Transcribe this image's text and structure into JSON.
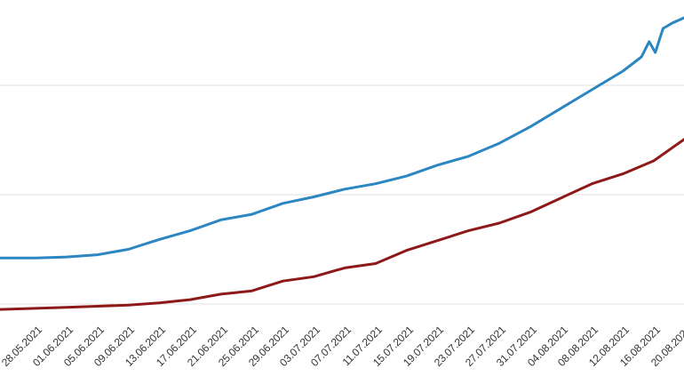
{
  "chart": {
    "background_color": "#ffffff",
    "gridline_color": "#e2e2e2",
    "tick_label_color": "#333333"
  },
  "chart_data": {
    "type": "line",
    "title": "",
    "xlabel": "",
    "ylabel": "",
    "legend": "none",
    "grid": true,
    "y_axis_tick_labels_visible": false,
    "y_gridline_values": [
      100,
      200,
      300
    ],
    "ylim": [
      80,
      375
    ],
    "x_tick_labels": [
      "28.05.2021",
      "01.06.2021",
      "05.06.2021",
      "09.06.2021",
      "13.06.2021",
      "17.06.2021",
      "21.06.2021",
      "25.06.2021",
      "29.06.2021",
      "03.07.2021",
      "07.07.2021",
      "11.07.2021",
      "15.07.2021",
      "19.07.2021",
      "23.07.2021",
      "27.07.2021",
      "31.07.2021",
      "04.08.2021",
      "08.08.2021",
      "12.08.2021",
      "16.08.2021",
      "20.08.2021"
    ],
    "series": [
      {
        "name": "upper-blue-line",
        "color": "#2c86c2",
        "stroke_width": 3,
        "points": [
          [
            -1.15,
            142
          ],
          [
            0,
            142
          ],
          [
            1,
            143
          ],
          [
            2,
            145
          ],
          [
            3,
            150
          ],
          [
            4,
            159
          ],
          [
            5,
            167
          ],
          [
            6,
            177
          ],
          [
            7,
            182
          ],
          [
            8,
            192
          ],
          [
            9,
            198
          ],
          [
            10,
            205
          ],
          [
            11,
            210
          ],
          [
            12,
            217
          ],
          [
            13,
            227
          ],
          [
            14,
            235
          ],
          [
            15,
            247
          ],
          [
            16,
            262
          ],
          [
            17,
            279
          ],
          [
            18,
            296
          ],
          [
            19,
            313
          ],
          [
            19.6,
            326
          ],
          [
            19.85,
            340
          ],
          [
            20.05,
            330
          ],
          [
            20.3,
            352
          ],
          [
            20.6,
            357
          ],
          [
            21,
            362
          ]
        ]
      },
      {
        "name": "lower-dark-red-line",
        "color": "#8e1919",
        "stroke_width": 3,
        "points": [
          [
            -1.15,
            95
          ],
          [
            0,
            96
          ],
          [
            1,
            97
          ],
          [
            2,
            98
          ],
          [
            3,
            99
          ],
          [
            4,
            101
          ],
          [
            5,
            104
          ],
          [
            6,
            109
          ],
          [
            7,
            112
          ],
          [
            8,
            121
          ],
          [
            9,
            125
          ],
          [
            10,
            133
          ],
          [
            11,
            137
          ],
          [
            12,
            149
          ],
          [
            13,
            158
          ],
          [
            14,
            167
          ],
          [
            15,
            174
          ],
          [
            16,
            184
          ],
          [
            17,
            197
          ],
          [
            18,
            210
          ],
          [
            19,
            219
          ],
          [
            20,
            231
          ],
          [
            21,
            251
          ]
        ]
      }
    ]
  }
}
